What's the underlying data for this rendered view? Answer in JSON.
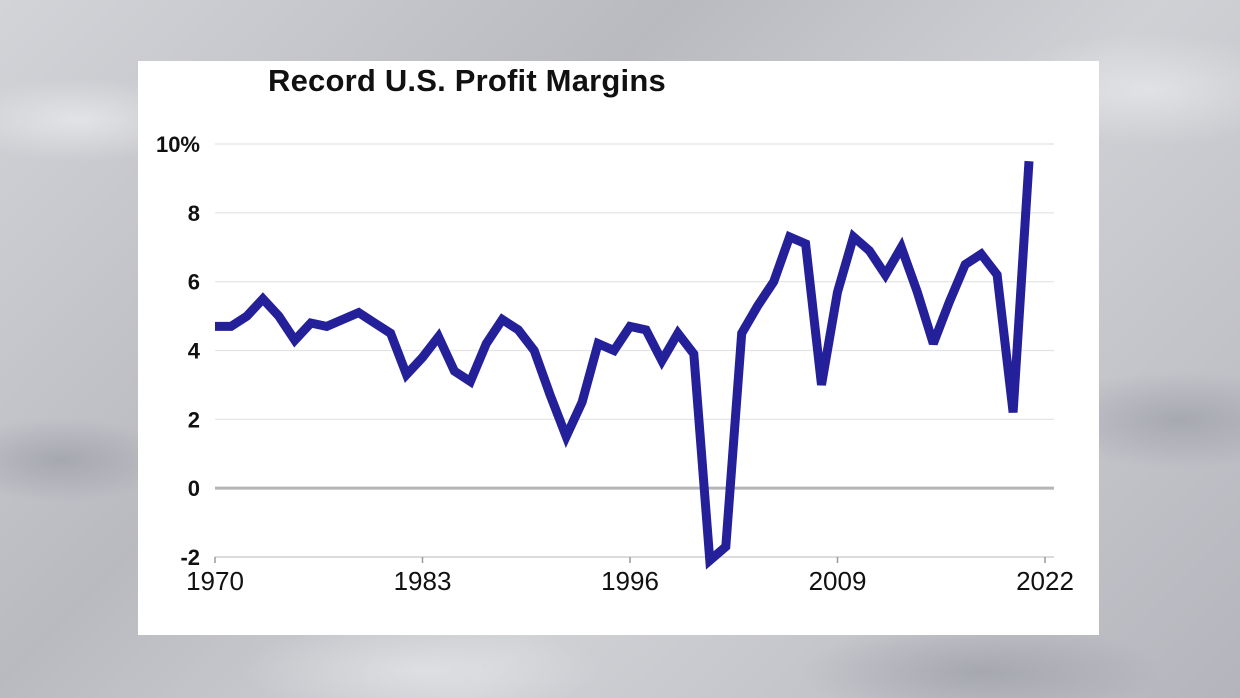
{
  "chart_data": {
    "type": "line",
    "title": "Record U.S. Profit Margins",
    "xlabel": "",
    "ylabel": "",
    "xlim": [
      1970,
      2022
    ],
    "ylim": [
      -2,
      10
    ],
    "y_ticks": [
      {
        "value": 10,
        "label": "10%"
      },
      {
        "value": 8,
        "label": "8"
      },
      {
        "value": 6,
        "label": "6"
      },
      {
        "value": 4,
        "label": "4"
      },
      {
        "value": 2,
        "label": "2"
      },
      {
        "value": 0,
        "label": "0"
      },
      {
        "value": -2,
        "label": "-2"
      }
    ],
    "x_ticks": [
      {
        "value": 1970,
        "label": "1970"
      },
      {
        "value": 1983,
        "label": "1983"
      },
      {
        "value": 1996,
        "label": "1996"
      },
      {
        "value": 2009,
        "label": "2009"
      },
      {
        "value": 2022,
        "label": "2022"
      }
    ],
    "grid": true,
    "legend": "none",
    "series": [
      {
        "color": "#24209a",
        "points": [
          [
            1970,
            4.7
          ],
          [
            1971,
            4.7
          ],
          [
            1972,
            5.0
          ],
          [
            1973,
            5.5
          ],
          [
            1974,
            5.0
          ],
          [
            1975,
            4.3
          ],
          [
            1976,
            4.8
          ],
          [
            1977,
            4.7
          ],
          [
            1978,
            4.9
          ],
          [
            1979,
            5.1
          ],
          [
            1980,
            4.8
          ],
          [
            1981,
            4.5
          ],
          [
            1982,
            3.3
          ],
          [
            1983,
            3.8
          ],
          [
            1984,
            4.4
          ],
          [
            1985,
            3.4
          ],
          [
            1986,
            3.1
          ],
          [
            1987,
            4.2
          ],
          [
            1988,
            4.9
          ],
          [
            1989,
            4.6
          ],
          [
            1990,
            4.0
          ],
          [
            1991,
            2.7
          ],
          [
            1992,
            1.5
          ],
          [
            1993,
            2.5
          ],
          [
            1994,
            4.2
          ],
          [
            1995,
            4.0
          ],
          [
            1996,
            4.7
          ],
          [
            1997,
            4.6
          ],
          [
            1998,
            3.7
          ],
          [
            1999,
            4.5
          ],
          [
            2000,
            3.9
          ],
          [
            2001,
            -2.1
          ],
          [
            2002,
            -1.7
          ],
          [
            2003,
            4.5
          ],
          [
            2004,
            5.3
          ],
          [
            2005,
            6.0
          ],
          [
            2006,
            7.3
          ],
          [
            2007,
            7.1
          ],
          [
            2008,
            3.0
          ],
          [
            2009,
            5.7
          ],
          [
            2010,
            7.3
          ],
          [
            2011,
            6.9
          ],
          [
            2012,
            6.2
          ],
          [
            2013,
            7.0
          ],
          [
            2014,
            5.7
          ],
          [
            2015,
            4.2
          ],
          [
            2016,
            5.4
          ],
          [
            2017,
            6.5
          ],
          [
            2018,
            6.8
          ],
          [
            2019,
            6.2
          ],
          [
            2020,
            2.2
          ],
          [
            2021,
            9.5
          ]
        ]
      }
    ]
  }
}
